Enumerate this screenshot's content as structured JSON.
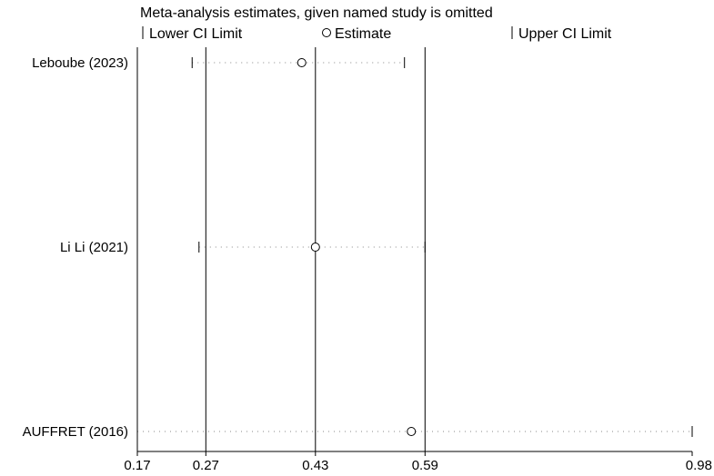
{
  "chart_data": {
    "type": "scatter",
    "title": "Meta-analysis estimates, given named study is omitted",
    "legend": {
      "placement": "top",
      "items": [
        {
          "symbol": "tick",
          "label": "Lower CI Limit"
        },
        {
          "symbol": "circle",
          "label": "Estimate"
        },
        {
          "symbol": "tick",
          "label": "Upper CI Limit"
        }
      ]
    },
    "x_ticks": [
      {
        "value": 0.17,
        "label": "0.17"
      },
      {
        "value": 0.27,
        "label": "0.27"
      },
      {
        "value": 0.43,
        "label": "0.43"
      },
      {
        "value": 0.59,
        "label": "0.59"
      },
      {
        "value": 0.98,
        "label": "0.98"
      }
    ],
    "reference_lines": [
      0.27,
      0.43,
      0.59
    ],
    "xlim": [
      0.17,
      0.98
    ],
    "studies": [
      {
        "name": "Leboube (2023)",
        "lower": 0.25,
        "estimate": 0.41,
        "upper": 0.56
      },
      {
        "name": "Li Li (2021)",
        "lower": 0.26,
        "estimate": 0.43,
        "upper": 0.59
      },
      {
        "name": "AUFFRET (2016)",
        "lower": 0.17,
        "estimate": 0.57,
        "upper": 0.98
      }
    ],
    "colors": {
      "axis": "#000000",
      "reference_line": "#000000",
      "dotted_line": "#888888",
      "marker_fill": "#ffffff"
    }
  }
}
